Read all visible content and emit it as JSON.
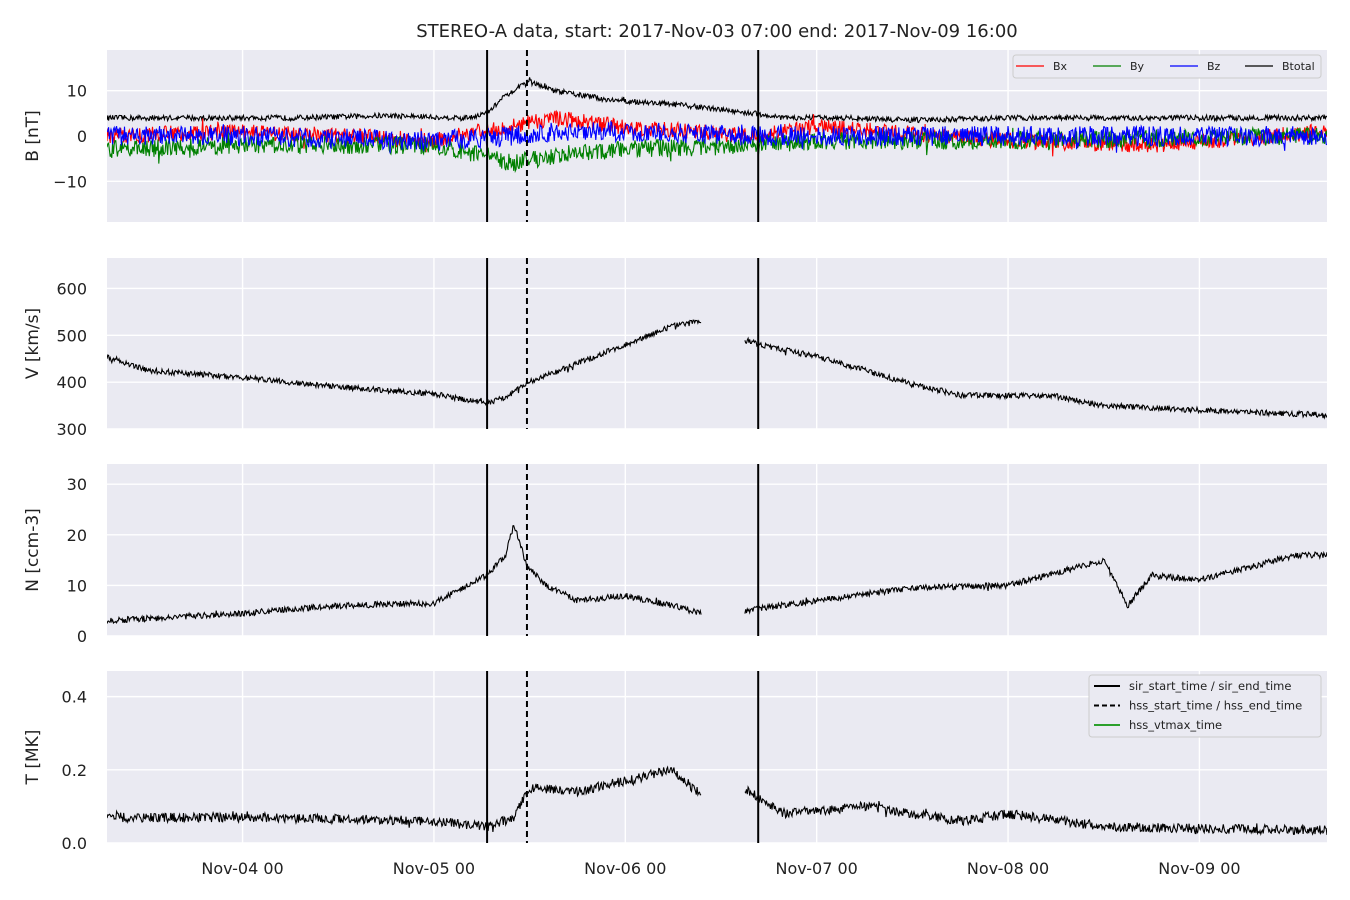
{
  "figure": {
    "title": "STEREO-A data, start: 2017-Nov-03 07:00  end: 2017-Nov-09 16:00"
  },
  "colors": {
    "panel_bg": "#eaeaf2",
    "grid": "#ffffff",
    "Bx": "#ff0000",
    "By": "#008000",
    "Bz": "#0000ff",
    "Btotal": "#000000",
    "event_line": "#000000",
    "hss_vtmax": "#2ca02c"
  },
  "chart_data": {
    "type": "line",
    "x_range": [
      "2017-11-03 07:00",
      "2017-11-09 16:00"
    ],
    "x_ticks": [
      {
        "t": "2017-11-04 00:00",
        "label": "Nov-04 00"
      },
      {
        "t": "2017-11-05 00:00",
        "label": "Nov-05 00"
      },
      {
        "t": "2017-11-06 00:00",
        "label": "Nov-06 00"
      },
      {
        "t": "2017-11-07 00:00",
        "label": "Nov-07 00"
      },
      {
        "t": "2017-11-08 00:00",
        "label": "Nov-08 00"
      },
      {
        "t": "2017-11-09 00:00",
        "label": "Nov-09 00"
      }
    ],
    "events": [
      {
        "name": "sir_start_time",
        "t": "2017-11-05 06:40",
        "style": "solid"
      },
      {
        "name": "hss_start_time",
        "t": "2017-11-05 11:40",
        "style": "dashed"
      },
      {
        "name": "sir_end_time",
        "t": "2017-11-06 16:40",
        "style": "solid"
      }
    ],
    "legend_events": [
      {
        "label": "sir_start_time / sir_end_time",
        "style": "solid",
        "color": "#000000"
      },
      {
        "label": "hss_start_time / hss_end_time",
        "style": "dashed",
        "color": "#000000"
      },
      {
        "label": "hss_vtmax_time",
        "style": "solid",
        "color": "#2ca02c"
      }
    ],
    "panels": [
      {
        "id": "B",
        "ylabel": "B [nT]",
        "ylim": [
          -19,
          19
        ],
        "yticks": [
          {
            "v": -10,
            "label": "−10"
          },
          {
            "v": 0,
            "label": "0"
          },
          {
            "v": 10,
            "label": "10"
          }
        ],
        "legend": [
          "Bx",
          "By",
          "Bz",
          "Btotal"
        ],
        "series": [
          {
            "name": "Btotal",
            "color": "#000000",
            "noise": 0.6,
            "points": [
              [
                "2017-11-03 07:00",
                4
              ],
              [
                "2017-11-03 18:00",
                4
              ],
              [
                "2017-11-04 06:00",
                4
              ],
              [
                "2017-11-04 18:00",
                4.5
              ],
              [
                "2017-11-05 04:00",
                4
              ],
              [
                "2017-11-05 06:40",
                5
              ],
              [
                "2017-11-05 09:00",
                9
              ],
              [
                "2017-11-05 12:00",
                12
              ],
              [
                "2017-11-05 15:00",
                10
              ],
              [
                "2017-11-05 22:00",
                8
              ],
              [
                "2017-11-06 06:00",
                7
              ],
              [
                "2017-11-06 16:00",
                5
              ],
              [
                "2017-11-06 20:00",
                4
              ],
              [
                "2017-11-07 04:00",
                4
              ],
              [
                "2017-11-07 12:00",
                3.5
              ],
              [
                "2017-11-08 00:00",
                4
              ],
              [
                "2017-11-08 12:00",
                4
              ],
              [
                "2017-11-09 00:00",
                4
              ],
              [
                "2017-11-09 16:00",
                4
              ]
            ]
          },
          {
            "name": "Bx",
            "color": "#ff0000",
            "noise": 1.8,
            "points": [
              [
                "2017-11-03 07:00",
                0
              ],
              [
                "2017-11-04 00:00",
                1
              ],
              [
                "2017-11-05 00:00",
                -1
              ],
              [
                "2017-11-05 09:00",
                2
              ],
              [
                "2017-11-05 15:00",
                4
              ],
              [
                "2017-11-06 00:00",
                2
              ],
              [
                "2017-11-06 16:00",
                0
              ],
              [
                "2017-11-07 00:00",
                2
              ],
              [
                "2017-11-08 00:00",
                -1
              ],
              [
                "2017-11-08 18:00",
                -2
              ],
              [
                "2017-11-09 16:00",
                1
              ]
            ]
          },
          {
            "name": "By",
            "color": "#008000",
            "noise": 2.0,
            "points": [
              [
                "2017-11-03 07:00",
                -3
              ],
              [
                "2017-11-04 00:00",
                -2
              ],
              [
                "2017-11-05 00:00",
                -2
              ],
              [
                "2017-11-05 10:00",
                -6
              ],
              [
                "2017-11-05 16:00",
                -4
              ],
              [
                "2017-11-06 00:00",
                -3
              ],
              [
                "2017-11-06 16:00",
                -2
              ],
              [
                "2017-11-07 00:00",
                -1
              ],
              [
                "2017-11-08 00:00",
                -1
              ],
              [
                "2017-11-09 16:00",
                0
              ]
            ]
          },
          {
            "name": "Bz",
            "color": "#0000ff",
            "noise": 2.2,
            "points": [
              [
                "2017-11-03 07:00",
                0
              ],
              [
                "2017-11-04 00:00",
                0
              ],
              [
                "2017-11-05 00:00",
                -1
              ],
              [
                "2017-11-05 10:00",
                0
              ],
              [
                "2017-11-05 16:00",
                1
              ],
              [
                "2017-11-06 00:00",
                1
              ],
              [
                "2017-11-06 16:00",
                0
              ],
              [
                "2017-11-07 00:00",
                0
              ],
              [
                "2017-11-08 00:00",
                0
              ],
              [
                "2017-11-09 16:00",
                0
              ]
            ]
          }
        ]
      },
      {
        "id": "V",
        "ylabel": "V [km/s]",
        "ylim": [
          300,
          665
        ],
        "yticks": [
          {
            "v": 300,
            "label": "300"
          },
          {
            "v": 400,
            "label": "400"
          },
          {
            "v": 500,
            "label": "500"
          },
          {
            "v": 600,
            "label": "600"
          }
        ],
        "series": [
          {
            "name": "V",
            "color": "#000000",
            "noise": 6,
            "gap": [
              "2017-11-06 09:30",
              "2017-11-06 15:00"
            ],
            "points": [
              [
                "2017-11-03 07:00",
                455
              ],
              [
                "2017-11-03 12:00",
                425
              ],
              [
                "2017-11-04 00:00",
                410
              ],
              [
                "2017-11-04 12:00",
                390
              ],
              [
                "2017-11-05 00:00",
                375
              ],
              [
                "2017-11-05 06:40",
                355
              ],
              [
                "2017-11-05 09:00",
                368
              ],
              [
                "2017-11-05 12:00",
                400
              ],
              [
                "2017-11-05 18:00",
                440
              ],
              [
                "2017-11-06 00:00",
                480
              ],
              [
                "2017-11-06 06:00",
                520
              ],
              [
                "2017-11-06 09:30",
                530
              ],
              [
                "2017-11-06 15:00",
                490
              ],
              [
                "2017-11-06 18:00",
                475
              ],
              [
                "2017-11-07 00:00",
                455
              ],
              [
                "2017-11-07 06:00",
                425
              ],
              [
                "2017-11-07 12:00",
                395
              ],
              [
                "2017-11-07 18:00",
                372
              ],
              [
                "2017-11-08 06:00",
                370
              ],
              [
                "2017-11-08 12:00",
                350
              ],
              [
                "2017-11-09 00:00",
                340
              ],
              [
                "2017-11-09 16:00",
                330
              ]
            ]
          }
        ]
      },
      {
        "id": "N",
        "ylabel": "N [ccm-3]",
        "ylim": [
          0,
          34
        ],
        "yticks": [
          {
            "v": 0,
            "label": "0"
          },
          {
            "v": 10,
            "label": "10"
          },
          {
            "v": 20,
            "label": "20"
          },
          {
            "v": 30,
            "label": "30"
          }
        ],
        "series": [
          {
            "name": "N",
            "color": "#000000",
            "noise": 0.6,
            "gap": [
              "2017-11-06 09:30",
              "2017-11-06 15:00"
            ],
            "points": [
              [
                "2017-11-03 07:00",
                3
              ],
              [
                "2017-11-04 00:00",
                4.5
              ],
              [
                "2017-11-04 12:00",
                6
              ],
              [
                "2017-11-05 00:00",
                6.5
              ],
              [
                "2017-11-05 06:40",
                12
              ],
              [
                "2017-11-05 09:00",
                16
              ],
              [
                "2017-11-05 10:00",
                22
              ],
              [
                "2017-11-05 11:40",
                14
              ],
              [
                "2017-11-05 14:00",
                10
              ],
              [
                "2017-11-05 18:00",
                7
              ],
              [
                "2017-11-06 00:00",
                8
              ],
              [
                "2017-11-06 06:00",
                6
              ],
              [
                "2017-11-06 09:30",
                4.5
              ],
              [
                "2017-11-06 15:00",
                5
              ],
              [
                "2017-11-07 00:00",
                7
              ],
              [
                "2017-11-07 12:00",
                9.5
              ],
              [
                "2017-11-08 00:00",
                10
              ],
              [
                "2017-11-08 12:00",
                15
              ],
              [
                "2017-11-08 15:00",
                6
              ],
              [
                "2017-11-08 18:00",
                12
              ],
              [
                "2017-11-09 00:00",
                11
              ],
              [
                "2017-11-09 12:00",
                16
              ],
              [
                "2017-11-09 16:00",
                16
              ]
            ]
          }
        ]
      },
      {
        "id": "T",
        "ylabel": "T [MK]",
        "ylim": [
          0,
          0.47
        ],
        "yticks": [
          {
            "v": 0,
            "label": "0.0"
          },
          {
            "v": 0.2,
            "label": "0.2"
          },
          {
            "v": 0.4,
            "label": "0.4"
          }
        ],
        "series": [
          {
            "name": "T",
            "color": "#000000",
            "noise": 0.013,
            "gap": [
              "2017-11-06 09:30",
              "2017-11-06 15:00"
            ],
            "points": [
              [
                "2017-11-03 07:00",
                0.07
              ],
              [
                "2017-11-04 00:00",
                0.07
              ],
              [
                "2017-11-05 00:00",
                0.06
              ],
              [
                "2017-11-05 06:40",
                0.045
              ],
              [
                "2017-11-05 10:00",
                0.07
              ],
              [
                "2017-11-05 12:00",
                0.15
              ],
              [
                "2017-11-05 18:00",
                0.14
              ],
              [
                "2017-11-06 00:00",
                0.17
              ],
              [
                "2017-11-06 06:00",
                0.2
              ],
              [
                "2017-11-06 09:30",
                0.13
              ],
              [
                "2017-11-06 15:00",
                0.15
              ],
              [
                "2017-11-06 20:00",
                0.08
              ],
              [
                "2017-11-07 06:00",
                0.1
              ],
              [
                "2017-11-07 18:00",
                0.06
              ],
              [
                "2017-11-08 00:00",
                0.08
              ],
              [
                "2017-11-08 12:00",
                0.045
              ],
              [
                "2017-11-09 00:00",
                0.04
              ],
              [
                "2017-11-09 16:00",
                0.035
              ]
            ]
          }
        ]
      }
    ]
  }
}
